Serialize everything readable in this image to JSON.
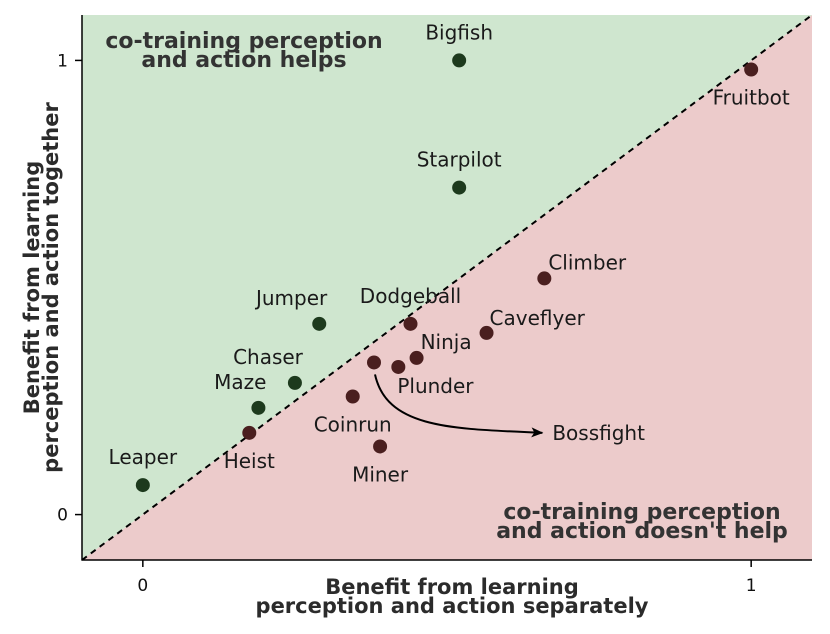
{
  "chart_data": {
    "type": "scatter",
    "xlabel": [
      "Benefit from learning",
      "perception and action separately"
    ],
    "ylabel": [
      "Benefit from learning",
      "perception and action together"
    ],
    "xlim": [
      -0.1,
      1.1
    ],
    "ylim": [
      -0.1,
      1.1
    ],
    "x_ticks": [
      {
        "value": 0,
        "label": "0"
      },
      {
        "value": 1,
        "label": "1"
      }
    ],
    "y_ticks": [
      {
        "value": 0,
        "label": "0"
      },
      {
        "value": 1,
        "label": "1"
      }
    ],
    "diagonal": "y = x, dashed",
    "regions": {
      "above": {
        "text": [
          "co-training perception",
          "and action helps"
        ],
        "color": "#cfe6cf",
        "placement": "top-left"
      },
      "below": {
        "text": [
          "co-training perception",
          "and action doesn't help"
        ],
        "color": "#eccbcb",
        "placement": "bottom-right"
      }
    },
    "colors": {
      "above_point": "#1d3a1d",
      "below_point": "#4a1f1f"
    },
    "points": [
      {
        "name": "Bigfish",
        "x": 0.52,
        "y": 1.0,
        "group": "above",
        "label_pos": "above"
      },
      {
        "name": "Fruitbot",
        "x": 1.0,
        "y": 0.98,
        "group": "below",
        "label_pos": "below"
      },
      {
        "name": "Starpilot",
        "x": 0.52,
        "y": 0.72,
        "group": "above",
        "label_pos": "above"
      },
      {
        "name": "Climber",
        "x": 0.66,
        "y": 0.52,
        "group": "below",
        "label_pos": "above-right"
      },
      {
        "name": "Jumper",
        "x": 0.29,
        "y": 0.42,
        "group": "above",
        "label_pos": "above-left"
      },
      {
        "name": "Dodgeball",
        "x": 0.44,
        "y": 0.42,
        "group": "below",
        "label_pos": "above"
      },
      {
        "name": "Caveflyer",
        "x": 0.565,
        "y": 0.4,
        "group": "below",
        "label_pos": "right"
      },
      {
        "name": "Ninja",
        "x": 0.45,
        "y": 0.345,
        "group": "below",
        "label_pos": "above-right"
      },
      {
        "name": "Plunder",
        "x": 0.42,
        "y": 0.325,
        "group": "below",
        "label_pos": "below-right"
      },
      {
        "name": "",
        "x": 0.38,
        "y": 0.335,
        "group": "below",
        "label_pos": "none"
      },
      {
        "name": "Chaser",
        "x": 0.25,
        "y": 0.29,
        "group": "above",
        "label_pos": "above-left"
      },
      {
        "name": "Maze",
        "x": 0.19,
        "y": 0.235,
        "group": "above",
        "label_pos": "above-left"
      },
      {
        "name": "Coinrun",
        "x": 0.345,
        "y": 0.26,
        "group": "below",
        "label_pos": "below"
      },
      {
        "name": "Heist",
        "x": 0.175,
        "y": 0.18,
        "group": "below",
        "label_pos": "below"
      },
      {
        "name": "Miner",
        "x": 0.39,
        "y": 0.15,
        "group": "below",
        "label_pos": "below"
      },
      {
        "name": "Leaper",
        "x": 0.0,
        "y": 0.065,
        "group": "above",
        "label_pos": "above"
      }
    ],
    "annotations": [
      {
        "text": "Bossfight",
        "from": {
          "x": 0.38,
          "y": 0.335
        },
        "to": {
          "x": 0.66,
          "y": 0.18
        }
      }
    ]
  }
}
